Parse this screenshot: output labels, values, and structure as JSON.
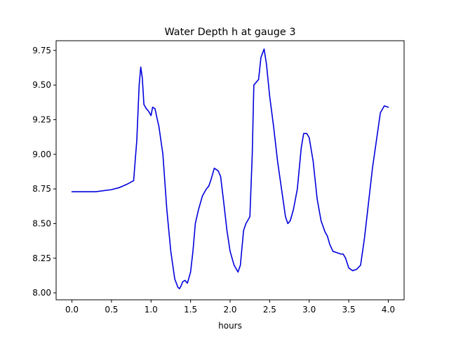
{
  "chart_data": {
    "type": "line",
    "title": "Water Depth h at gauge 3",
    "xlabel": "hours",
    "ylabel": "",
    "xlim": [
      -0.2,
      4.2
    ],
    "ylim": [
      7.95,
      9.82
    ],
    "xticks": [
      0.0,
      0.5,
      1.0,
      1.5,
      2.0,
      2.5,
      3.0,
      3.5,
      4.0
    ],
    "xtick_labels": [
      "0.0",
      "0.5",
      "1.0",
      "1.5",
      "2.0",
      "2.5",
      "3.0",
      "3.5",
      "4.0"
    ],
    "yticks": [
      8.0,
      8.25,
      8.5,
      8.75,
      9.0,
      9.25,
      9.5,
      9.75
    ],
    "ytick_labels": [
      "8.00",
      "8.25",
      "8.50",
      "8.75",
      "9.00",
      "9.25",
      "9.50",
      "9.75"
    ],
    "grid": false,
    "series": [
      {
        "color": "#0000dd",
        "x": [
          0.0,
          0.3,
          0.5,
          0.6,
          0.7,
          0.78,
          0.82,
          0.85,
          0.87,
          0.89,
          0.91,
          0.94,
          0.97,
          1.0,
          1.02,
          1.05,
          1.08,
          1.1,
          1.15,
          1.2,
          1.25,
          1.3,
          1.34,
          1.36,
          1.38,
          1.4,
          1.43,
          1.46,
          1.5,
          1.53,
          1.56,
          1.6,
          1.65,
          1.7,
          1.73,
          1.76,
          1.8,
          1.85,
          1.88,
          1.92,
          1.96,
          2.0,
          2.05,
          2.1,
          2.13,
          2.17,
          2.2,
          2.25,
          2.28,
          2.3,
          2.33,
          2.36,
          2.39,
          2.43,
          2.46,
          2.5,
          2.55,
          2.6,
          2.65,
          2.7,
          2.73,
          2.76,
          2.8,
          2.85,
          2.9,
          2.93,
          2.97,
          3.0,
          3.05,
          3.1,
          3.15,
          3.2,
          3.23,
          3.26,
          3.3,
          3.35,
          3.4,
          3.43,
          3.46,
          3.5,
          3.55,
          3.6,
          3.65,
          3.7,
          3.75,
          3.8,
          3.85,
          3.9,
          3.95,
          4.0
        ],
        "y": [
          8.73,
          8.73,
          8.745,
          8.76,
          8.785,
          8.81,
          9.1,
          9.5,
          9.63,
          9.55,
          9.36,
          9.33,
          9.31,
          9.28,
          9.34,
          9.33,
          9.25,
          9.2,
          9.0,
          8.6,
          8.3,
          8.1,
          8.04,
          8.03,
          8.05,
          8.08,
          8.09,
          8.07,
          8.15,
          8.3,
          8.5,
          8.6,
          8.7,
          8.75,
          8.77,
          8.82,
          8.9,
          8.88,
          8.84,
          8.65,
          8.45,
          8.3,
          8.2,
          8.15,
          8.2,
          8.45,
          8.5,
          8.55,
          9.0,
          9.5,
          9.52,
          9.54,
          9.7,
          9.76,
          9.65,
          9.42,
          9.2,
          8.95,
          8.75,
          8.55,
          8.5,
          8.52,
          8.6,
          8.75,
          9.05,
          9.15,
          9.15,
          9.12,
          8.95,
          8.68,
          8.52,
          8.44,
          8.41,
          8.35,
          8.3,
          8.29,
          8.28,
          8.28,
          8.25,
          8.18,
          8.16,
          8.17,
          8.2,
          8.4,
          8.65,
          8.9,
          9.1,
          9.3,
          9.35,
          9.34
        ]
      }
    ]
  }
}
